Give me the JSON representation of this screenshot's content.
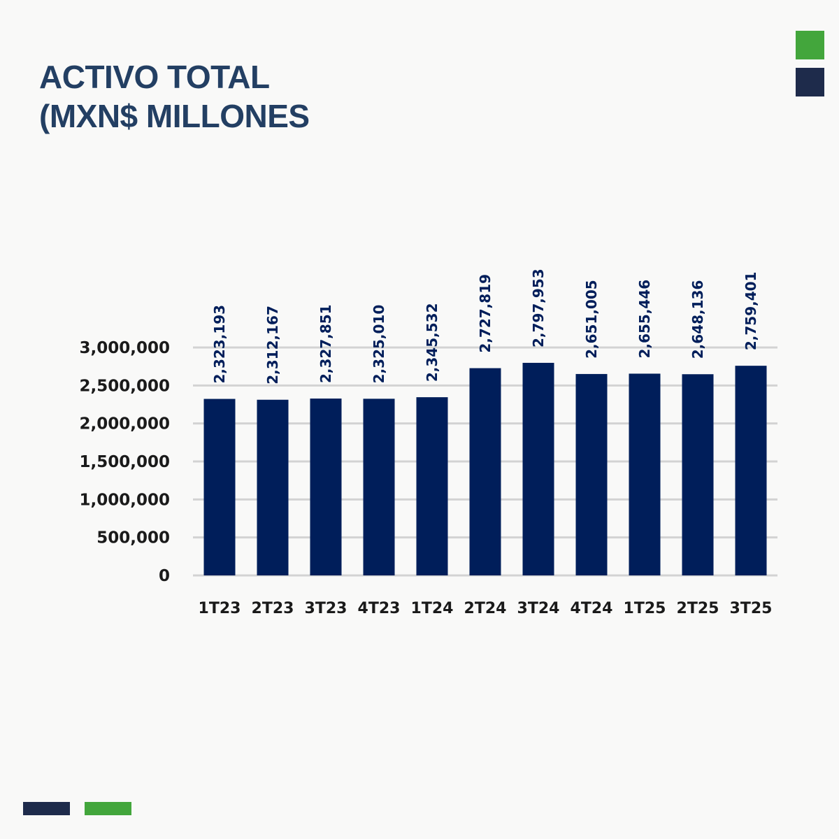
{
  "header": {
    "title_line1": "ACTIVO TOTAL",
    "title_line2": "(MXN$ MILLONES"
  },
  "colors": {
    "title": "#233f63",
    "bar": "#001e5a",
    "data_label": "#001e5a",
    "grid": "#d3d3d3",
    "accent_green": "#43a63c",
    "accent_navy": "#1e2b4b"
  },
  "chart_data": {
    "type": "bar",
    "title": "",
    "xlabel": "",
    "ylabel": "",
    "categories": [
      "1T23",
      "2T23",
      "3T23",
      "4T23",
      "1T24",
      "2T24",
      "3T24",
      "4T24",
      "1T25",
      "2T25",
      "3T25"
    ],
    "values": [
      2323193,
      2312167,
      2327851,
      2325010,
      2345532,
      2727819,
      2797953,
      2651005,
      2655446,
      2648136,
      2759401
    ],
    "data_labels": [
      "2,323,193",
      "2,312,167",
      "2,327,851",
      "2,325,010",
      "2,345,532",
      "2,727,819",
      "2,797,953",
      "2,651,005",
      "2,655,446",
      "2,648,136",
      "2,759,401"
    ],
    "ylim": [
      0,
      3000000
    ],
    "yticks": [
      0,
      500000,
      1000000,
      1500000,
      2000000,
      2500000,
      3000000
    ],
    "ytick_labels": [
      "0",
      "500,000",
      "1,000,000",
      "1,500,000",
      "2,000,000",
      "2,500,000",
      "3,000,000"
    ],
    "grid": true,
    "legend": "none"
  }
}
